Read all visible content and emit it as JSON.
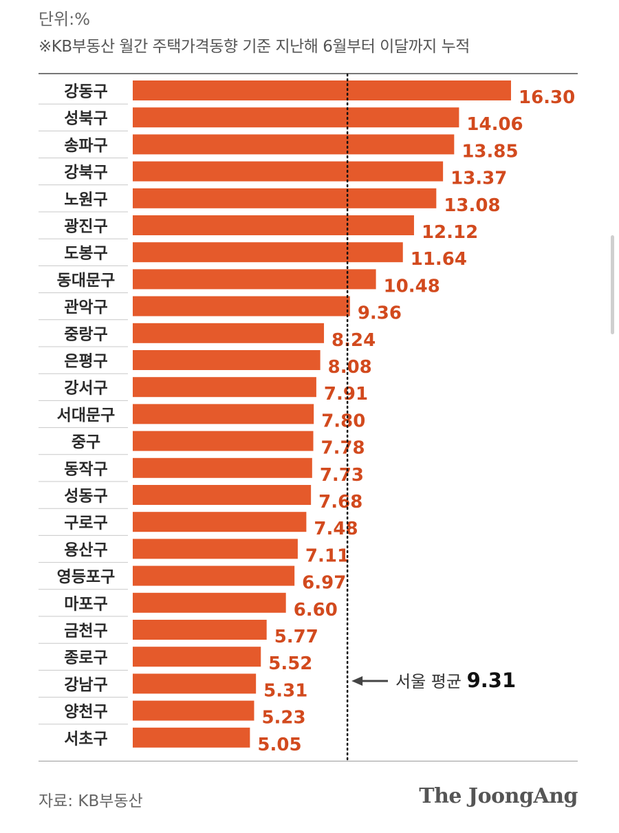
{
  "header": {
    "unit": "단위:%",
    "note": "※KB부동산 월간 주택가격동향 기준 지난해 6월부터 이달까지 누적"
  },
  "chart_data": {
    "type": "bar",
    "orientation": "horizontal",
    "categories": [
      "강동구",
      "성북구",
      "송파구",
      "강북구",
      "노원구",
      "광진구",
      "도봉구",
      "동대문구",
      "관악구",
      "중랑구",
      "은평구",
      "강서구",
      "서대문구",
      "중구",
      "동작구",
      "성동구",
      "구로구",
      "용산구",
      "영등포구",
      "마포구",
      "금천구",
      "종로구",
      "강남구",
      "양천구",
      "서초구"
    ],
    "values": [
      16.3,
      14.06,
      13.85,
      13.37,
      13.08,
      12.12,
      11.64,
      10.48,
      9.36,
      8.24,
      8.08,
      7.91,
      7.8,
      7.78,
      7.73,
      7.68,
      7.48,
      7.11,
      6.97,
      6.6,
      5.77,
      5.52,
      5.31,
      5.23,
      5.05
    ],
    "value_labels": [
      "16.30",
      "14.06",
      "13.85",
      "13.37",
      "13.08",
      "12.12",
      "11.64",
      "10.48",
      "9.36",
      "8.24",
      "8.08",
      "7.91",
      "7.80",
      "7.78",
      "7.73",
      "7.68",
      "7.48",
      "7.11",
      "6.97",
      "6.60",
      "5.77",
      "5.52",
      "5.31",
      "5.23",
      "5.05"
    ],
    "bar_color": "#e55a2b",
    "label_color": "#d24a1e",
    "reference_line": {
      "value": 9.31,
      "label": "서울 평균",
      "value_label": "9.31",
      "style": "dotted"
    },
    "xlim": [
      0,
      16.3
    ],
    "grid": false
  },
  "footer": {
    "source": "자료: KB부동산",
    "brand": "The JoongAng"
  }
}
